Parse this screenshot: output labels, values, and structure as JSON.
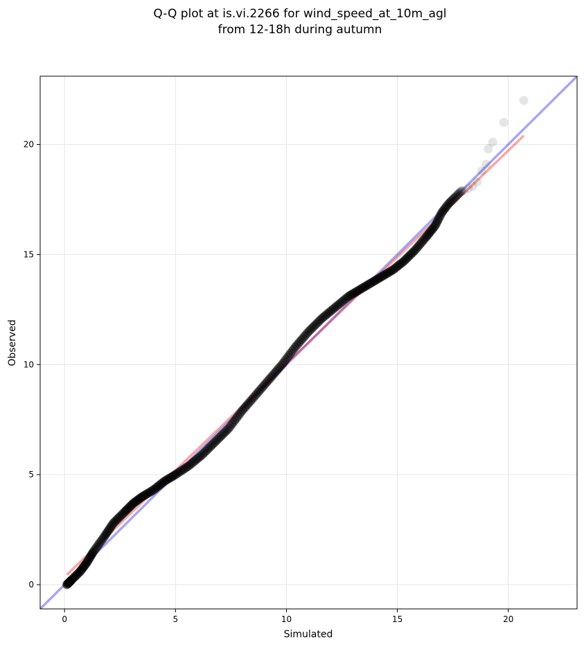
{
  "chart_data": {
    "type": "scatter",
    "title": "Q-Q plot at is.vi.2266 for wind_speed_at_10m_agl",
    "subtitle": "from 12-18h during autumn",
    "xlabel": "Simulated",
    "ylabel": "Observed",
    "xlim": [
      -1.1,
      23.1
    ],
    "ylim": [
      -1.1,
      23.1
    ],
    "xticks": [
      0,
      5,
      10,
      15,
      20
    ],
    "yticks": [
      0,
      5,
      10,
      15,
      20
    ],
    "grid": true,
    "legend": "none",
    "colors": {
      "points": "#000000",
      "identity_line": "#0000dd",
      "fit_line": "#ee0000",
      "grid": "#e6e6e6"
    },
    "identity_line": {
      "x": [
        -1.1,
        23.1
      ],
      "y": [
        -1.1,
        23.1
      ]
    },
    "fit_line": {
      "x": [
        0.1,
        20.7
      ],
      "y": [
        0.45,
        20.4
      ]
    },
    "quantile_anchors": {
      "x": [
        0.1,
        0.3,
        0.7,
        1.0,
        1.3,
        1.8,
        2.2,
        2.7,
        3.1,
        3.5,
        4.0,
        4.5,
        5.0,
        5.6,
        6.2,
        6.8,
        7.4,
        8.0,
        8.6,
        9.2,
        9.8,
        10.4,
        11.0,
        11.6,
        12.2,
        12.8,
        13.3,
        13.8,
        14.3,
        14.8,
        15.3,
        15.8,
        16.3,
        16.7,
        17.0,
        17.3,
        17.6,
        17.9
      ],
      "y": [
        0.0,
        0.2,
        0.6,
        1.0,
        1.5,
        2.2,
        2.8,
        3.3,
        3.7,
        4.0,
        4.3,
        4.7,
        5.0,
        5.4,
        5.9,
        6.5,
        7.1,
        7.9,
        8.6,
        9.3,
        10.0,
        10.8,
        11.5,
        12.1,
        12.6,
        13.1,
        13.4,
        13.7,
        14.0,
        14.3,
        14.7,
        15.2,
        15.8,
        16.3,
        16.9,
        17.3,
        17.6,
        17.9
      ]
    },
    "tail_points": {
      "x": [
        18.0,
        18.2,
        18.4,
        18.6,
        18.8,
        19.0,
        19.1,
        19.3,
        19.8,
        20.7
      ],
      "y": [
        17.9,
        18.0,
        18.1,
        18.3,
        18.8,
        19.1,
        19.8,
        20.1,
        21.0,
        22.0
      ]
    }
  }
}
